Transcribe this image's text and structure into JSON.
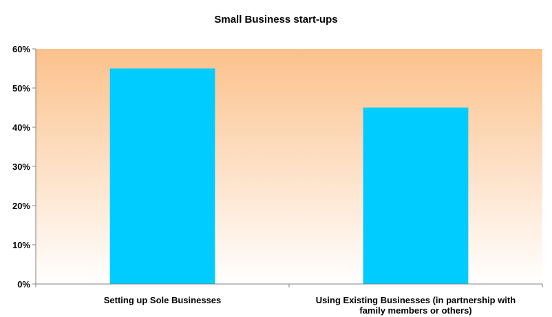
{
  "chart_data": {
    "type": "bar",
    "title": "Small Business start-ups",
    "categories": [
      [
        "Setting up Sole Businesses"
      ],
      [
        "Using Existing Businesses (in partnership with",
        "family members or others)"
      ]
    ],
    "values": [
      55,
      45
    ],
    "value_unit": "%",
    "ylim": [
      0,
      60
    ],
    "yticks": [
      "0%",
      "10%",
      "20%",
      "30%",
      "40%",
      "50%",
      "60%"
    ],
    "xlabel": "",
    "ylabel": "",
    "grid": false,
    "legend": "none",
    "colors": {
      "bar": "#00CCFF",
      "background_top": "#FBC18B",
      "background_bottom": "#FFFFFF"
    }
  }
}
